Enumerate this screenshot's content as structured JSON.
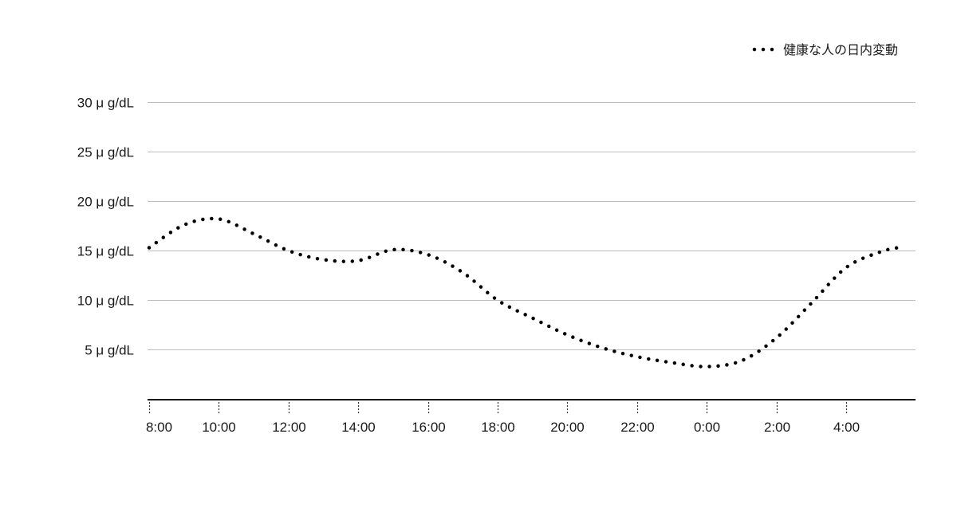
{
  "chart_data": {
    "type": "line",
    "title": "",
    "xlabel": "",
    "ylabel": "",
    "categories": [
      "8:00",
      "10:00",
      "12:00",
      "14:00",
      "16:00",
      "18:00",
      "20:00",
      "22:00",
      "0:00",
      "2:00",
      "4:00"
    ],
    "y_ticks": [
      {
        "value": 5,
        "label": "5 μ g/dL"
      },
      {
        "value": 10,
        "label": "10 μ g/dL"
      },
      {
        "value": 15,
        "label": "15 μ g/dL"
      },
      {
        "value": 20,
        "label": "20 μ g/dL"
      },
      {
        "value": 25,
        "label": "25 μ g/dL"
      },
      {
        "value": 30,
        "label": "30 μ g/dL"
      }
    ],
    "ylim": [
      0,
      30
    ],
    "grid": true,
    "legend": {
      "position": "top-right"
    },
    "series": [
      {
        "name": "健康な人の日内変動",
        "style": "dotted",
        "color": "#000000",
        "points": [
          [
            "8:00",
            15.3
          ],
          [
            "9:00",
            17.6
          ],
          [
            "10:00",
            18.2
          ],
          [
            "11:00",
            16.7
          ],
          [
            "12:00",
            15.0
          ],
          [
            "13:00",
            14.1
          ],
          [
            "14:00",
            14.0
          ],
          [
            "15:00",
            15.1
          ],
          [
            "16:00",
            14.6
          ],
          [
            "17:00",
            12.8
          ],
          [
            "18:00",
            10.0
          ],
          [
            "19:00",
            8.2
          ],
          [
            "20:00",
            6.5
          ],
          [
            "21:00",
            5.2
          ],
          [
            "22:00",
            4.3
          ],
          [
            "23:00",
            3.7
          ],
          [
            "0:00",
            3.3
          ],
          [
            "1:00",
            3.9
          ],
          [
            "2:00",
            6.2
          ],
          [
            "3:00",
            9.7
          ],
          [
            "4:00",
            13.3
          ],
          [
            "5:00",
            14.9
          ],
          [
            "5:40",
            15.4
          ]
        ]
      }
    ]
  }
}
